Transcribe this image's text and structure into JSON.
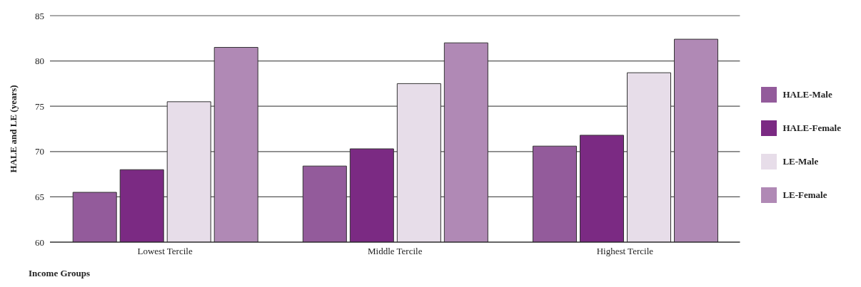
{
  "chart_data": {
    "type": "bar",
    "xlabel": "Income Groups",
    "ylabel": "HALE and LE (years)",
    "categories": [
      "Lowest Tercile",
      "Middle Tercile",
      "Highest Tercile"
    ],
    "series": [
      {
        "name": "HALE-Male",
        "color": "#935b9b",
        "values": [
          65.5,
          68.4,
          70.6
        ]
      },
      {
        "name": "HALE-Female",
        "color": "#7b2a83",
        "values": [
          68.0,
          70.3,
          71.8
        ]
      },
      {
        "name": "LE-Male",
        "color": "#e7dde9",
        "values": [
          75.5,
          77.5,
          78.7
        ]
      },
      {
        "name": "LE-Female",
        "color": "#b089b5",
        "values": [
          81.5,
          82.0,
          82.4
        ]
      }
    ],
    "ylim": [
      60,
      85
    ],
    "yticks": [
      60,
      65,
      70,
      75,
      80,
      85
    ],
    "grid": "y",
    "legend": "right"
  }
}
